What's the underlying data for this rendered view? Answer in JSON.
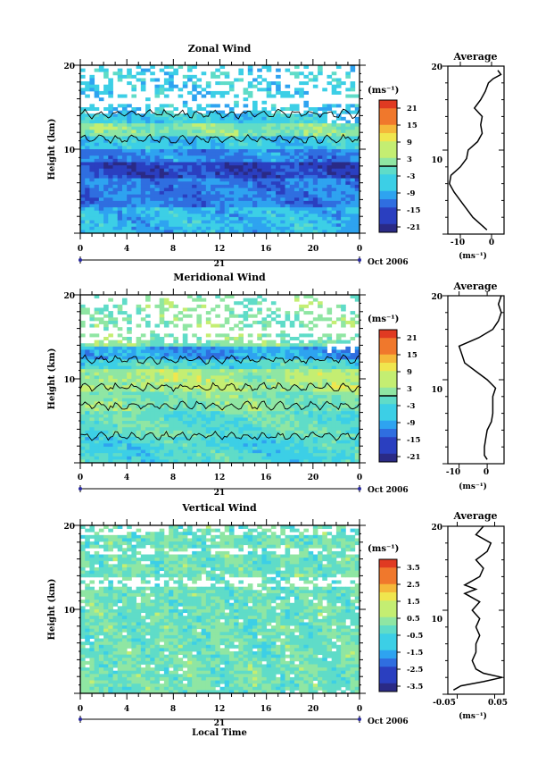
{
  "figure": {
    "x_axis_label": "Local Time",
    "date_label": "Oct 2006",
    "day_label": "21"
  },
  "chart_data": [
    {
      "type": "heatmap",
      "title": "Zonal Wind",
      "ylabel": "Height (km)",
      "xlim": [
        0,
        24
      ],
      "ylim": [
        0,
        20
      ],
      "x_ticks": [
        "0",
        "4",
        "8",
        "12",
        "16",
        "20",
        "0"
      ],
      "y_ticks": [
        "10",
        "20"
      ],
      "colorbar": {
        "unit": "(ms⁻¹)",
        "range": [
          -24,
          24
        ],
        "ticks": [
          "21",
          "15",
          "9",
          "3",
          "-3",
          "-9",
          "-15",
          "-21"
        ],
        "zero_line": true
      },
      "profile": {
        "title": "Average",
        "xlabel": "(ms⁻¹)",
        "xlim": [
          -14,
          4
        ],
        "x_ticks": [
          "-10",
          "0"
        ],
        "y_ticks": [
          "10",
          "20"
        ],
        "heights": [
          0.5,
          1,
          2,
          3,
          4,
          5,
          6,
          7,
          8,
          9,
          10,
          11,
          12,
          13,
          14,
          15,
          16,
          17,
          18,
          18.5,
          19,
          19.5
        ],
        "values": [
          -1.5,
          -3,
          -6,
          -8,
          -10,
          -12,
          -13.5,
          -13,
          -10,
          -8,
          -7.5,
          -4.5,
          -3,
          -3.5,
          -3,
          -5.5,
          -3.5,
          -2,
          -1,
          0.5,
          3,
          2
        ]
      }
    },
    {
      "type": "heatmap",
      "title": "Meridional Wind",
      "ylabel": "Height (km)",
      "xlim": [
        0,
        24
      ],
      "ylim": [
        0,
        20
      ],
      "x_ticks": [
        "0",
        "4",
        "8",
        "12",
        "16",
        "20",
        "0"
      ],
      "y_ticks": [
        "10",
        "20"
      ],
      "colorbar": {
        "unit": "(ms⁻¹)",
        "range": [
          -24,
          24
        ],
        "ticks": [
          "21",
          "15",
          "9",
          "3",
          "-3",
          "-9",
          "-15",
          "-21"
        ],
        "zero_line": true
      },
      "profile": {
        "title": "Average",
        "xlabel": "(ms⁻¹)",
        "xlim": [
          -14,
          6
        ],
        "x_ticks": [
          "-10",
          "0"
        ],
        "y_ticks": [
          "10",
          "20"
        ],
        "heights": [
          0.5,
          1,
          2,
          3,
          4,
          5,
          6,
          7,
          8,
          9,
          10,
          11,
          12,
          13,
          14,
          15,
          16,
          17,
          18,
          19,
          20
        ],
        "values": [
          0,
          -1,
          -1,
          -0.5,
          0,
          1.5,
          2,
          2,
          2,
          3,
          0,
          -4,
          -8,
          -9,
          -10,
          -3,
          2,
          4,
          5,
          4,
          5
        ]
      }
    },
    {
      "type": "heatmap",
      "title": "Vertical Wind",
      "ylabel": "Height (km)",
      "xlim": [
        0,
        24
      ],
      "ylim": [
        0,
        20
      ],
      "x_ticks": [
        "0",
        "4",
        "8",
        "12",
        "16",
        "20",
        "0"
      ],
      "y_ticks": [
        "10",
        "20"
      ],
      "colorbar": {
        "unit": "(ms⁻¹)",
        "range": [
          -4,
          4
        ],
        "ticks": [
          "3.5",
          "2.5",
          "1.5",
          "0.5",
          "-0.5",
          "-1.5",
          "-2.5",
          "-3.5"
        ],
        "zero_line": false
      },
      "profile": {
        "title": "Average",
        "xlabel": "(ms⁻¹)",
        "xlim": [
          -0.075,
          0.075
        ],
        "x_ticks": [
          "-0.05",
          "0.05"
        ],
        "y_ticks": [
          "10",
          "20"
        ],
        "heights": [
          0.5,
          1,
          1.5,
          2,
          2.5,
          3,
          4,
          5,
          6,
          7,
          8,
          9,
          10,
          11,
          12,
          12.5,
          13,
          14,
          15,
          16,
          17,
          18,
          19,
          20
        ],
        "values": [
          -0.06,
          -0.04,
          0.02,
          0.07,
          0.02,
          0.0,
          -0.01,
          0.0,
          0.0,
          0.01,
          0.0,
          0.01,
          -0.01,
          0.01,
          -0.03,
          0.0,
          -0.03,
          0.01,
          0.02,
          0.0,
          0.03,
          0.04,
          0.0,
          0.02
        ]
      }
    }
  ]
}
